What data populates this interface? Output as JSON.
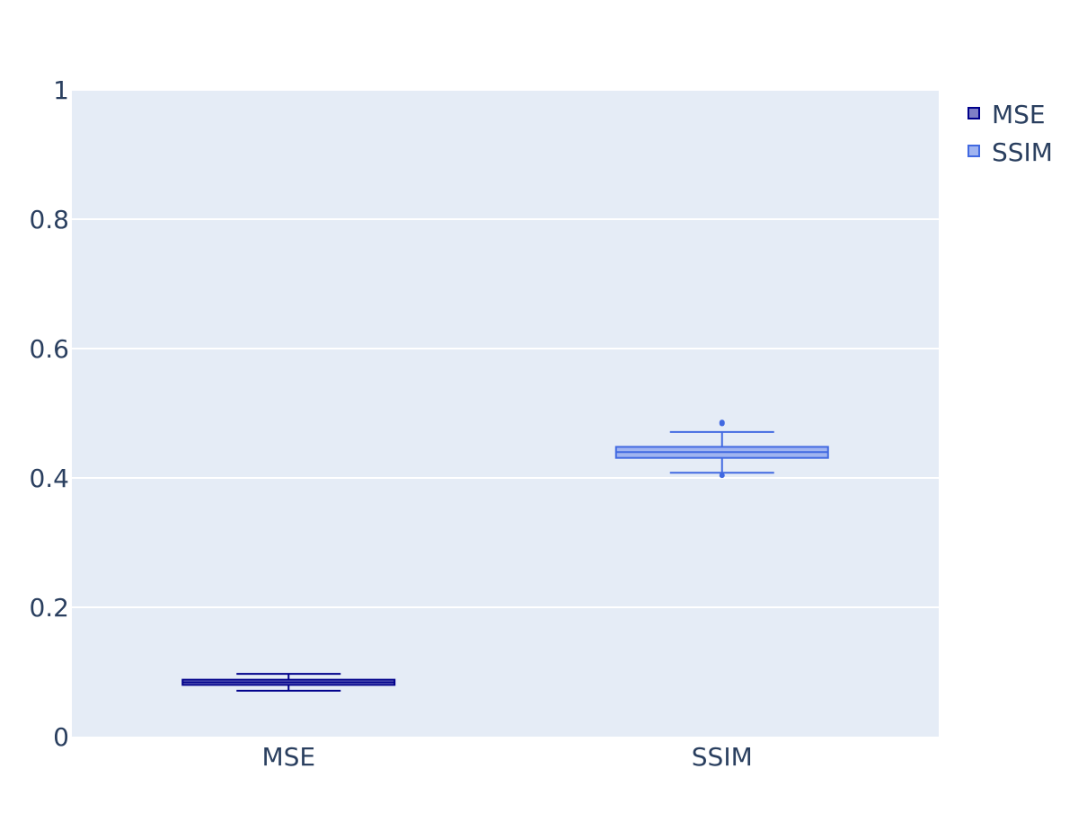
{
  "chart_data": {
    "type": "box",
    "title": "",
    "xlabel": "",
    "ylabel": "",
    "ylim": [
      0,
      1
    ],
    "yticks": [
      {
        "value": 0,
        "label": "0"
      },
      {
        "value": 0.2,
        "label": "0.2"
      },
      {
        "value": 0.4,
        "label": "0.4"
      },
      {
        "value": 0.6,
        "label": "0.6"
      },
      {
        "value": 0.8,
        "label": "0.8"
      },
      {
        "value": 1,
        "label": "1"
      }
    ],
    "categories": [
      "MSE",
      "SSIM"
    ],
    "grid": true,
    "legend_position": "top-right",
    "series": [
      {
        "name": "MSE",
        "category": "MSE",
        "color": "#00008b",
        "fill": "#7f7fc5",
        "min": 0.071,
        "q1": 0.08,
        "median": 0.084,
        "q3": 0.088,
        "max": 0.097,
        "outliers": []
      },
      {
        "name": "SSIM",
        "category": "SSIM",
        "color": "#4169e1",
        "fill": "#a0b4f0",
        "min": 0.408,
        "q1": 0.431,
        "median": 0.44,
        "q3": 0.448,
        "max": 0.471,
        "outliers": [
          0.404,
          0.484,
          0.486
        ]
      }
    ]
  },
  "colors": {
    "plot_background": "#e5ecf6",
    "grid": "#ffffff",
    "text": "#2a3f5f"
  }
}
